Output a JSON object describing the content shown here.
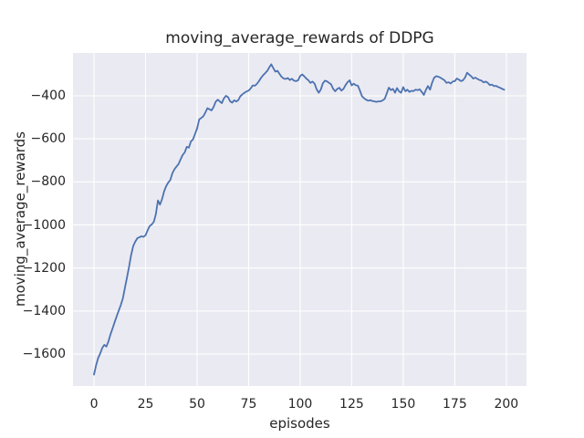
{
  "colors": {
    "figure_bg": "#ffffff",
    "axes_bg": "#EAEAF2",
    "grid": "#ffffff",
    "text": "#262626",
    "line": "#4C72B0"
  },
  "chart_data": {
    "type": "line",
    "title": "moving_average_rewards of DDPG",
    "xlabel": "episodes",
    "ylabel": "moving_average_rewards",
    "grid": true,
    "legend": false,
    "x_is_index": true,
    "xlim": [
      -10.2,
      209.8
    ],
    "ylim": [
      -1748,
      -201
    ],
    "x_ticks": [
      0,
      25,
      50,
      75,
      100,
      125,
      150,
      175,
      200
    ],
    "x_tick_labels": [
      "0",
      "25",
      "50",
      "75",
      "100",
      "125",
      "150",
      "175",
      "200"
    ],
    "y_ticks": [
      -400,
      -600,
      -800,
      -1000,
      -1200,
      -1400,
      -1600
    ],
    "y_tick_labels": [
      "−400",
      "−600",
      "−800",
      "−1000",
      "−1200",
      "−1400",
      "−1600"
    ],
    "line_color": "#4C72B0",
    "series": [
      {
        "name": "moving_average_rewards",
        "values": [
          -1695,
          -1652,
          -1618,
          -1597,
          -1571,
          -1557,
          -1565,
          -1540,
          -1508,
          -1480,
          -1452,
          -1424,
          -1397,
          -1372,
          -1340,
          -1292,
          -1243,
          -1195,
          -1140,
          -1098,
          -1078,
          -1062,
          -1057,
          -1053,
          -1055,
          -1048,
          -1025,
          -1005,
          -998,
          -985,
          -950,
          -886,
          -906,
          -880,
          -843,
          -820,
          -803,
          -792,
          -760,
          -742,
          -729,
          -717,
          -695,
          -675,
          -663,
          -637,
          -641,
          -612,
          -603,
          -578,
          -552,
          -510,
          -503,
          -495,
          -478,
          -458,
          -463,
          -468,
          -452,
          -428,
          -418,
          -426,
          -434,
          -412,
          -400,
          -406,
          -425,
          -432,
          -421,
          -427,
          -420,
          -402,
          -393,
          -386,
          -380,
          -376,
          -366,
          -352,
          -353,
          -345,
          -332,
          -317,
          -305,
          -295,
          -285,
          -268,
          -254,
          -272,
          -288,
          -284,
          -299,
          -312,
          -320,
          -322,
          -318,
          -327,
          -321,
          -330,
          -332,
          -328,
          -308,
          -301,
          -310,
          -320,
          -328,
          -340,
          -334,
          -344,
          -370,
          -386,
          -372,
          -342,
          -330,
          -333,
          -340,
          -347,
          -368,
          -379,
          -368,
          -363,
          -376,
          -368,
          -350,
          -337,
          -328,
          -352,
          -344,
          -351,
          -353,
          -377,
          -402,
          -412,
          -418,
          -423,
          -421,
          -424,
          -426,
          -428,
          -426,
          -426,
          -422,
          -414,
          -390,
          -362,
          -374,
          -368,
          -386,
          -364,
          -380,
          -386,
          -360,
          -379,
          -372,
          -382,
          -377,
          -378,
          -372,
          -374,
          -370,
          -382,
          -396,
          -372,
          -355,
          -372,
          -340,
          -316,
          -309,
          -311,
          -316,
          -322,
          -328,
          -340,
          -337,
          -343,
          -334,
          -332,
          -320,
          -325,
          -332,
          -328,
          -315,
          -293,
          -302,
          -310,
          -320,
          -316,
          -322,
          -327,
          -330,
          -338,
          -334,
          -340,
          -350,
          -348,
          -355,
          -354,
          -359,
          -363,
          -368,
          -372
        ]
      }
    ]
  }
}
